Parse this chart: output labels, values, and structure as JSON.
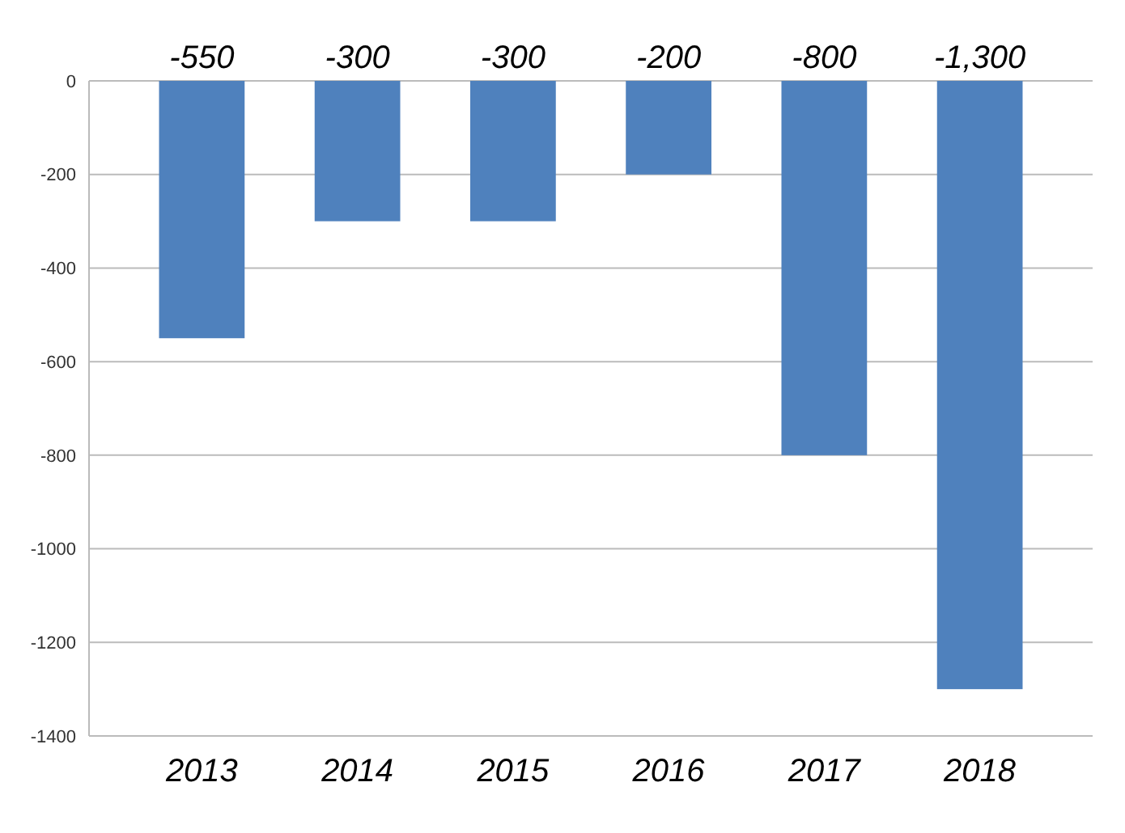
{
  "chart_data": {
    "type": "bar",
    "categories": [
      "2013",
      "2014",
      "2015",
      "2016",
      "2017",
      "2018"
    ],
    "values": [
      -550,
      -300,
      -300,
      -200,
      -800,
      -1300
    ],
    "color": "#4f81bd",
    "value_labels": [
      "-550",
      "-300",
      "-300",
      "-200",
      "-800",
      "-1,300"
    ],
    "ylim": [
      -1400,
      0
    ],
    "yticks": [
      0,
      -200,
      -400,
      -600,
      -800,
      -1000,
      -1200,
      -1400
    ],
    "grid": "y"
  }
}
